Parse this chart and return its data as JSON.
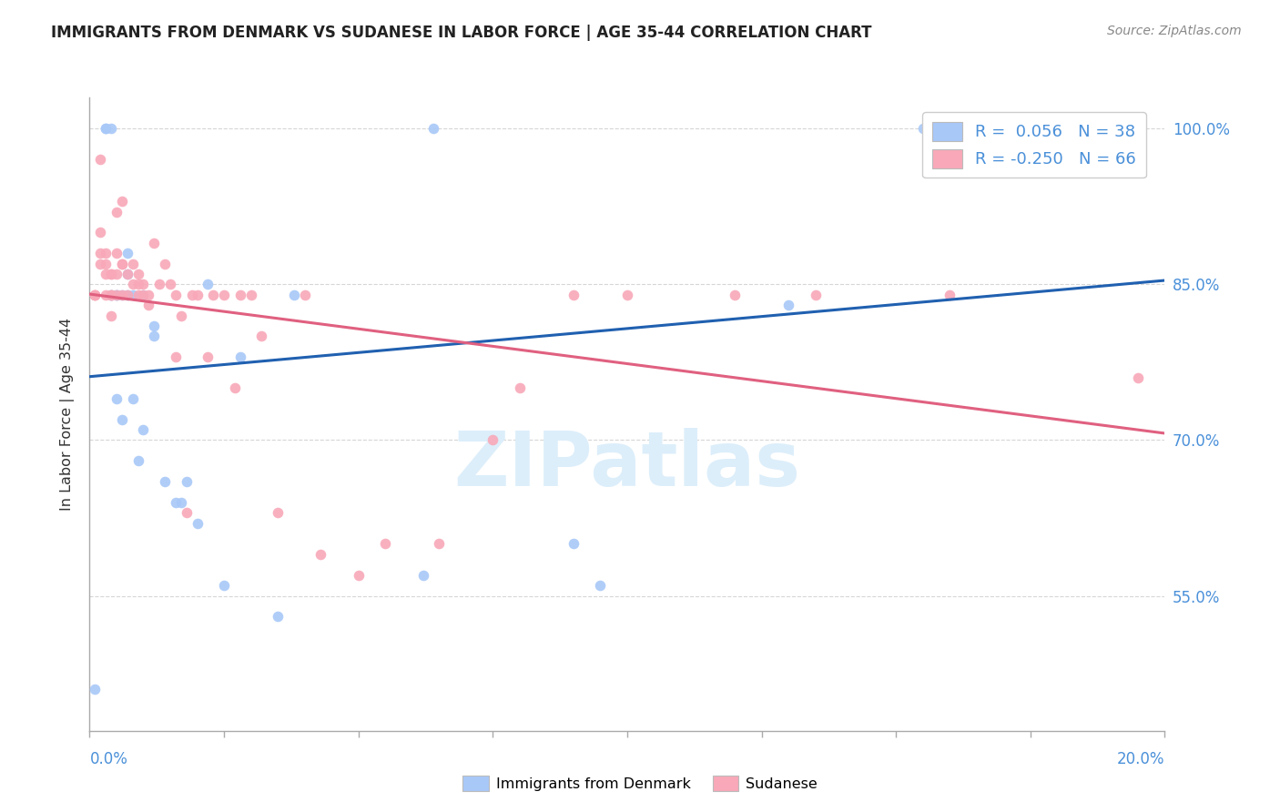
{
  "title": "IMMIGRANTS FROM DENMARK VS SUDANESE IN LABOR FORCE | AGE 35-44 CORRELATION CHART",
  "source": "Source: ZipAtlas.com",
  "ylabel": "In Labor Force | Age 35-44",
  "xlim": [
    0.0,
    0.2
  ],
  "ylim": [
    0.42,
    1.03
  ],
  "ytick_positions": [
    0.55,
    0.7,
    0.85,
    1.0
  ],
  "ytick_labels": [
    "55.0%",
    "70.0%",
    "85.0%",
    "100.0%"
  ],
  "xtick_positions": [
    0.0,
    0.025,
    0.05,
    0.075,
    0.1,
    0.125,
    0.15,
    0.175,
    0.2
  ],
  "legend_r1": "R =  0.056",
  "legend_n1": "N = 38",
  "legend_r2": "R = -0.250",
  "legend_n2": "N = 66",
  "denmark_color": "#a8c8f8",
  "sudanese_color": "#f8a8b8",
  "denmark_line_color": "#2060b0",
  "sudanese_line_color": "#e06080",
  "axis_color": "#aaaaaa",
  "grid_color": "#cccccc",
  "right_label_color": "#4a90d9",
  "text_color": "#333333",
  "title_color": "#222222",
  "source_color": "#888888",
  "background_color": "#ffffff",
  "watermark": "ZIPatlas",
  "watermark_color": "#dceefa",
  "denmark_x": [
    0.001,
    0.003,
    0.003,
    0.004,
    0.004,
    0.004,
    0.005,
    0.005,
    0.005,
    0.006,
    0.006,
    0.007,
    0.007,
    0.007,
    0.008,
    0.008,
    0.009,
    0.01,
    0.01,
    0.012,
    0.012,
    0.014,
    0.016,
    0.017,
    0.018,
    0.02,
    0.022,
    0.025,
    0.028,
    0.035,
    0.038,
    0.062,
    0.064,
    0.09,
    0.095,
    0.13,
    0.155,
    0.195
  ],
  "denmark_y": [
    0.46,
    1.0,
    1.0,
    1.0,
    0.84,
    0.84,
    0.84,
    0.84,
    0.74,
    0.72,
    0.84,
    0.88,
    0.86,
    0.84,
    0.74,
    0.84,
    0.68,
    0.84,
    0.71,
    0.81,
    0.8,
    0.66,
    0.64,
    0.64,
    0.66,
    0.62,
    0.85,
    0.56,
    0.78,
    0.53,
    0.84,
    0.57,
    1.0,
    0.6,
    0.56,
    0.83,
    1.0,
    1.0
  ],
  "sudanese_x": [
    0.001,
    0.001,
    0.001,
    0.002,
    0.002,
    0.002,
    0.002,
    0.003,
    0.003,
    0.003,
    0.003,
    0.004,
    0.004,
    0.004,
    0.004,
    0.004,
    0.005,
    0.005,
    0.005,
    0.005,
    0.006,
    0.006,
    0.006,
    0.006,
    0.007,
    0.007,
    0.008,
    0.008,
    0.009,
    0.009,
    0.009,
    0.01,
    0.01,
    0.011,
    0.011,
    0.012,
    0.013,
    0.014,
    0.015,
    0.016,
    0.016,
    0.017,
    0.018,
    0.019,
    0.02,
    0.022,
    0.023,
    0.025,
    0.027,
    0.028,
    0.03,
    0.032,
    0.035,
    0.04,
    0.043,
    0.05,
    0.055,
    0.065,
    0.075,
    0.08,
    0.09,
    0.1,
    0.12,
    0.135,
    0.16,
    0.195
  ],
  "sudanese_y": [
    0.84,
    0.84,
    0.84,
    0.97,
    0.9,
    0.88,
    0.87,
    0.86,
    0.88,
    0.87,
    0.84,
    0.86,
    0.86,
    0.84,
    0.84,
    0.82,
    0.92,
    0.88,
    0.86,
    0.84,
    0.93,
    0.87,
    0.87,
    0.84,
    0.86,
    0.84,
    0.87,
    0.85,
    0.86,
    0.85,
    0.84,
    0.85,
    0.84,
    0.84,
    0.83,
    0.89,
    0.85,
    0.87,
    0.85,
    0.84,
    0.78,
    0.82,
    0.63,
    0.84,
    0.84,
    0.78,
    0.84,
    0.84,
    0.75,
    0.84,
    0.84,
    0.8,
    0.63,
    0.84,
    0.59,
    0.57,
    0.6,
    0.6,
    0.7,
    0.75,
    0.84,
    0.84,
    0.84,
    0.84,
    0.84,
    0.76
  ]
}
